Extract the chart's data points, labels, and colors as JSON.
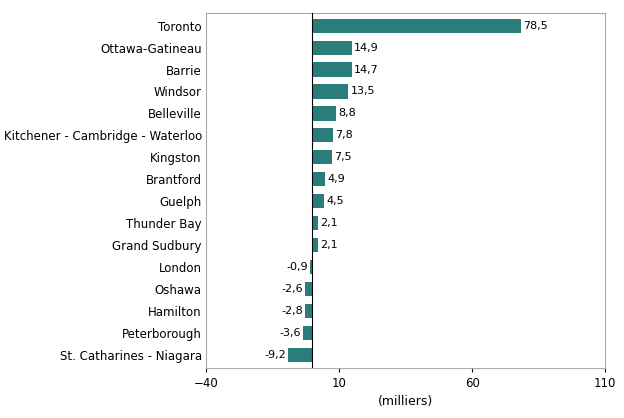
{
  "categories": [
    "Toronto",
    "Ottawa-Gatineau",
    "Barrie",
    "Windsor",
    "Belleville",
    "Kitchener - Cambridge - Waterloo",
    "Kingston",
    "Brantford",
    "Guelph",
    "Thunder Bay",
    "Grand Sudbury",
    "London",
    "Oshawa",
    "Hamilton",
    "Peterborough",
    "St. Catharines - Niagara"
  ],
  "values": [
    78.5,
    14.9,
    14.7,
    13.5,
    8.8,
    7.8,
    7.5,
    4.9,
    4.5,
    2.1,
    2.1,
    -0.9,
    -2.6,
    -2.8,
    -3.6,
    -9.2
  ],
  "labels": [
    "78,5",
    "14,9",
    "14,7",
    "13,5",
    "8,8",
    "7,8",
    "7,5",
    "4,9",
    "4,5",
    "2,1",
    "2,1",
    "-0,9",
    "-2,6",
    "-2,8",
    "-3,6",
    "-9,2"
  ],
  "bar_color": "#2a7d7b",
  "xlabel": "(milliers)",
  "xlim": [
    -40,
    110
  ],
  "xticks": [
    -40,
    10,
    60,
    110
  ],
  "background_color": "#ffffff",
  "bar_height": 0.65,
  "label_fontsize": 8.0,
  "tick_fontsize": 8.5,
  "xlabel_fontsize": 9.0
}
